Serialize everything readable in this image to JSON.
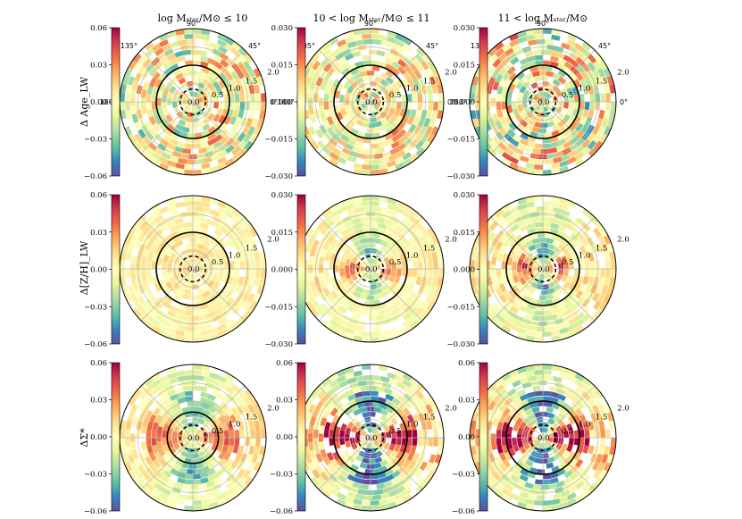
{
  "figure": {
    "col_titles": [
      "log Mₛₜₐᵣ/M⊙ ≤ 10",
      "10 < log Mₛₜₐᵣ/M⊙ ≤ 11",
      "11 < log Mₛₜₐᵣ/M⊙"
    ],
    "row_labels": [
      "Δ Age_LW",
      "Δ[Z/H]_LW",
      "ΔΣ*"
    ],
    "colormap": [
      "#5e4fa2",
      "#3288bd",
      "#66c2a5",
      "#abdda4",
      "#e6f598",
      "#ffffbf",
      "#fee08b",
      "#fdae61",
      "#f46d43",
      "#d53e4f",
      "#9e0142"
    ],
    "angle_labels": [
      "90°",
      "45°",
      "0°",
      "135°",
      "180°"
    ],
    "radial_labels": [
      "0.0",
      "0.5",
      "1.0",
      "1.5",
      "2.0"
    ]
  },
  "chart_data": [
    {
      "type": "heatmap",
      "subtype": "polar",
      "row": 0,
      "col": 0,
      "quantity": "Δ Age_LW",
      "title": "log Mₛₜₐᵣ/M⊙ ≤ 10",
      "colorbar": {
        "range": [
          -0.06,
          0.06
        ],
        "ticks": [
          "0.06",
          "0.03",
          "0.00",
          "−0.03",
          "−0.06"
        ]
      },
      "pattern": "patchy",
      "amp": 0.6,
      "solid_circle_r": 1.0,
      "dashed_circle_r": 0.35,
      "rlim": [
        0,
        2.0
      ]
    },
    {
      "type": "heatmap",
      "subtype": "polar",
      "row": 0,
      "col": 1,
      "quantity": "Δ Age_LW",
      "title": "10 < log Mₛₜₐᵣ/M⊙ ≤ 11",
      "colorbar": {
        "range": [
          -0.03,
          0.03
        ],
        "ticks": [
          "0.030",
          "0.015",
          "0.000",
          "−0.015",
          "−0.030"
        ]
      },
      "pattern": "patchy",
      "amp": 0.55,
      "solid_circle_r": 1.0,
      "dashed_circle_r": 0.35,
      "rlim": [
        0,
        2.0
      ]
    },
    {
      "type": "heatmap",
      "subtype": "polar",
      "row": 0,
      "col": 2,
      "quantity": "Δ Age_LW",
      "title": "11 < log Mₛₜₐᵣ/M⊙",
      "colorbar": {
        "range": [
          -0.03,
          0.03
        ],
        "ticks": [
          "0.030",
          "0.015",
          "0.000",
          "−0.015",
          "−0.030"
        ]
      },
      "pattern": "patchy",
      "amp": 0.7,
      "solid_circle_r": 1.0,
      "dashed_circle_r": 0.35,
      "rlim": [
        0,
        2.0
      ]
    },
    {
      "type": "heatmap",
      "subtype": "polar",
      "row": 1,
      "col": 0,
      "quantity": "Δ[Z/H]_LW",
      "colorbar": {
        "range": [
          -0.06,
          0.06
        ],
        "ticks": [
          "0.06",
          "0.03",
          "0.00",
          "−0.03",
          "−0.06"
        ]
      },
      "pattern": "mildpos",
      "amp": 0.35,
      "solid_circle_r": 1.0,
      "dashed_circle_r": 0.35,
      "rlim": [
        0,
        2.0
      ]
    },
    {
      "type": "heatmap",
      "subtype": "polar",
      "row": 1,
      "col": 1,
      "quantity": "Δ[Z/H]_LW",
      "colorbar": {
        "range": [
          -0.03,
          0.03
        ],
        "ticks": [
          "0.030",
          "0.015",
          "0.000",
          "−0.015",
          "−0.030"
        ]
      },
      "pattern": "quad_metal",
      "amp": 0.55,
      "solid_circle_r": 1.0,
      "dashed_circle_r": 0.35,
      "rlim": [
        0,
        2.0
      ]
    },
    {
      "type": "heatmap",
      "subtype": "polar",
      "row": 1,
      "col": 2,
      "quantity": "Δ[Z/H]_LW",
      "colorbar": {
        "range": [
          -0.03,
          0.03
        ],
        "ticks": [
          "0.030",
          "0.015",
          "0.000",
          "−0.015",
          "−0.030"
        ]
      },
      "pattern": "quad_metal",
      "amp": 0.75,
      "solid_circle_r": 1.0,
      "dashed_circle_r": 0.35,
      "rlim": [
        0,
        2.0
      ]
    },
    {
      "type": "heatmap",
      "subtype": "polar",
      "row": 2,
      "col": 0,
      "quantity": "ΔΣ*",
      "colorbar": {
        "range": [
          -0.06,
          0.06
        ],
        "ticks": [
          "0.06",
          "0.03",
          "0.00",
          "−0.03",
          "−0.06"
        ]
      },
      "pattern": "quad_mass",
      "amp": 0.55,
      "solid_circle_r": 0.7,
      "dashed_circle_r": 0.35,
      "rlim": [
        0,
        2.0
      ]
    },
    {
      "type": "heatmap",
      "subtype": "polar",
      "row": 2,
      "col": 1,
      "quantity": "ΔΣ*",
      "colorbar": {
        "range": [
          -0.06,
          0.06
        ],
        "ticks": [
          "0.06",
          "0.03",
          "0.00",
          "−0.03",
          "−0.06"
        ]
      },
      "pattern": "quad_mass",
      "amp": 0.85,
      "solid_circle_r": 1.0,
      "dashed_circle_r": 0.35,
      "rlim": [
        0,
        2.0
      ]
    },
    {
      "type": "heatmap",
      "subtype": "polar",
      "row": 2,
      "col": 2,
      "quantity": "ΔΣ*",
      "colorbar": {
        "range": [
          -0.06,
          0.06
        ],
        "ticks": [
          "0.06",
          "0.03",
          "0.00",
          "−0.03",
          "−0.06"
        ]
      },
      "pattern": "quad_mass",
      "amp": 0.85,
      "solid_circle_r": 1.0,
      "dashed_circle_r": 0.35,
      "rlim": [
        0,
        2.0
      ]
    }
  ]
}
